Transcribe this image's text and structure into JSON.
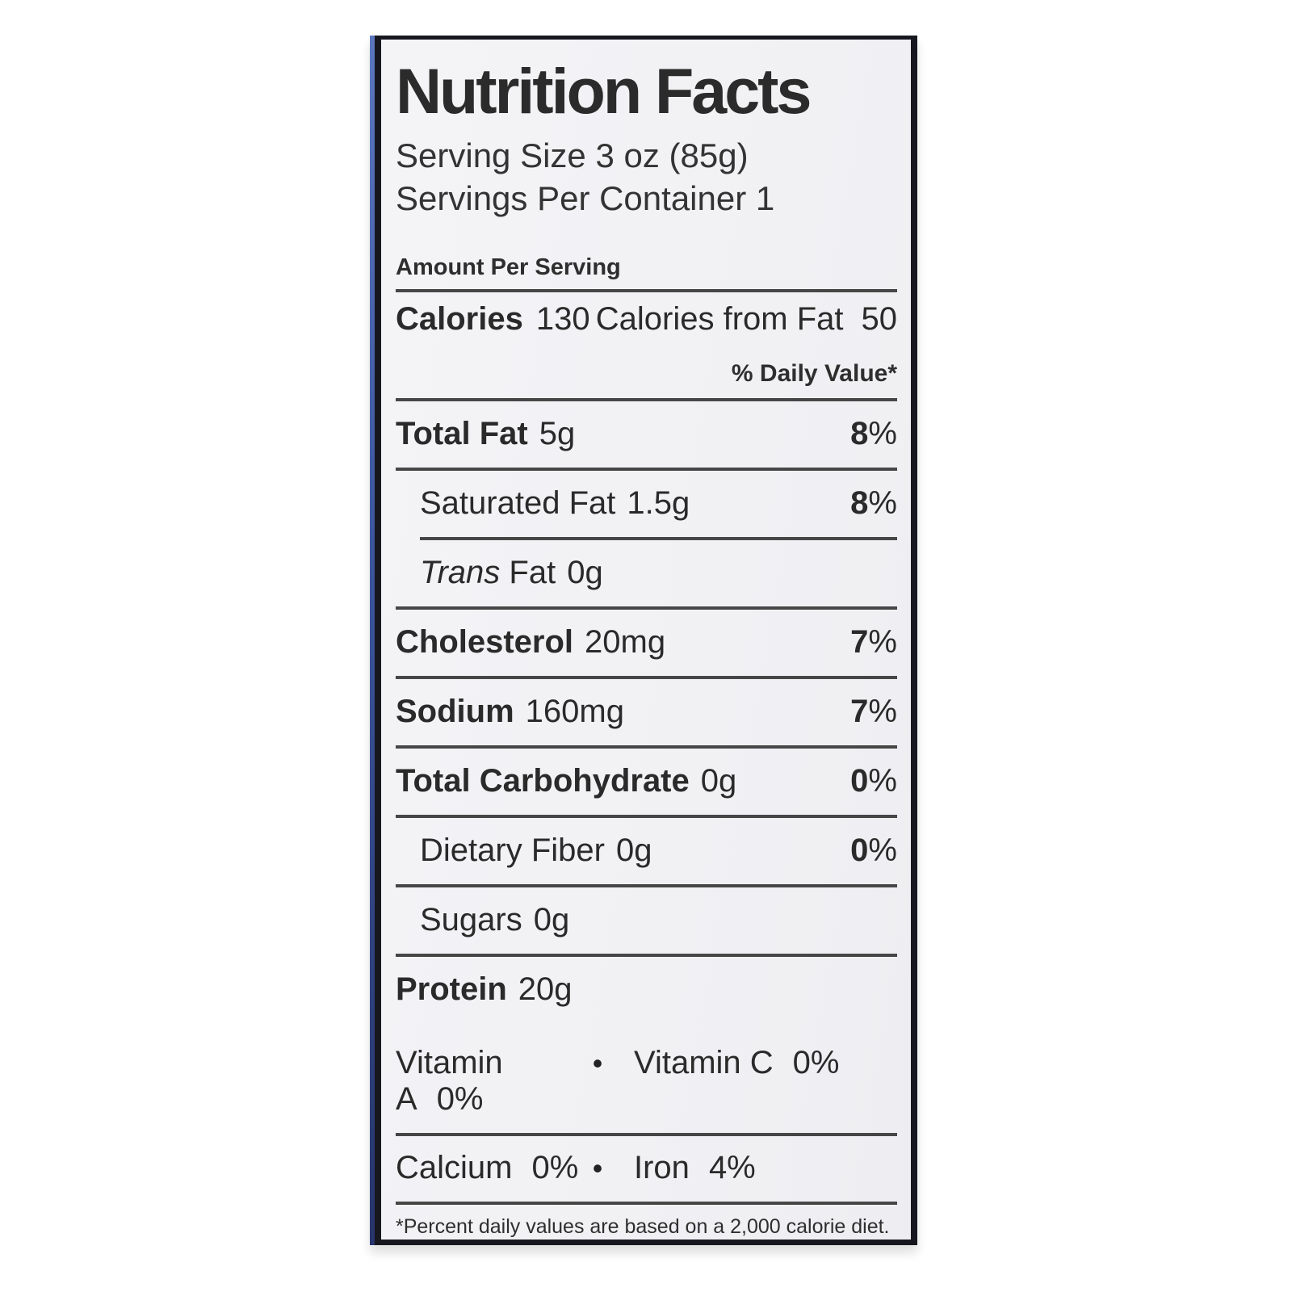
{
  "label": {
    "title": "Nutrition Facts",
    "serving_size": "Serving Size 3 oz (85g)",
    "servings_per_container": "Servings Per Container 1",
    "amount_per_serving": "Amount Per Serving",
    "calories_label": "Calories",
    "calories_value": "130",
    "calories_from_fat_label": "Calories from Fat",
    "calories_from_fat_value": "50",
    "daily_value_header": "% Daily Value*",
    "nutrients": [
      {
        "name_italic": "",
        "name": "Total Fat",
        "amount": "5g",
        "dv": "8",
        "dv_unit": "%",
        "bold": true,
        "indent": false,
        "sep": "full"
      },
      {
        "name_italic": "",
        "name": "Saturated Fat",
        "amount": "1.5g",
        "dv": "8",
        "dv_unit": "%",
        "bold": false,
        "indent": true,
        "sep": "indent"
      },
      {
        "name_italic": "Trans",
        "name": "Fat",
        "amount": "0g",
        "dv": "",
        "dv_unit": "",
        "bold": false,
        "indent": true,
        "sep": "full"
      },
      {
        "name_italic": "",
        "name": "Cholesterol",
        "amount": "20mg",
        "dv": "7",
        "dv_unit": "%",
        "bold": true,
        "indent": false,
        "sep": "full"
      },
      {
        "name_italic": "",
        "name": "Sodium",
        "amount": "160mg",
        "dv": "7",
        "dv_unit": "%",
        "bold": true,
        "indent": false,
        "sep": "full"
      },
      {
        "name_italic": "",
        "name": "Total Carbohydrate",
        "amount": "0g",
        "dv": "0",
        "dv_unit": "%",
        "bold": true,
        "indent": false,
        "sep": "full"
      },
      {
        "name_italic": "",
        "name": "Dietary Fiber",
        "amount": "0g",
        "dv": "0",
        "dv_unit": "%",
        "bold": false,
        "indent": true,
        "sep": "full"
      },
      {
        "name_italic": "",
        "name": "Sugars",
        "amount": "0g",
        "dv": "",
        "dv_unit": "",
        "bold": false,
        "indent": true,
        "sep": "full"
      },
      {
        "name_italic": "",
        "name": "Protein",
        "amount": "20g",
        "dv": "",
        "dv_unit": "",
        "bold": true,
        "indent": false,
        "sep": "none"
      }
    ],
    "micronutrients": [
      {
        "left_name": "Vitamin A",
        "left_value": "0%",
        "bullet": "•",
        "right_name": "Vitamin C",
        "right_value": "0%",
        "sep": "full"
      },
      {
        "left_name": "Calcium",
        "left_value": "0%",
        "bullet": "•",
        "right_name": "Iron",
        "right_value": "4%",
        "sep": "full"
      }
    ],
    "footnote": "*Percent daily values are based on a 2,000 calorie diet."
  }
}
